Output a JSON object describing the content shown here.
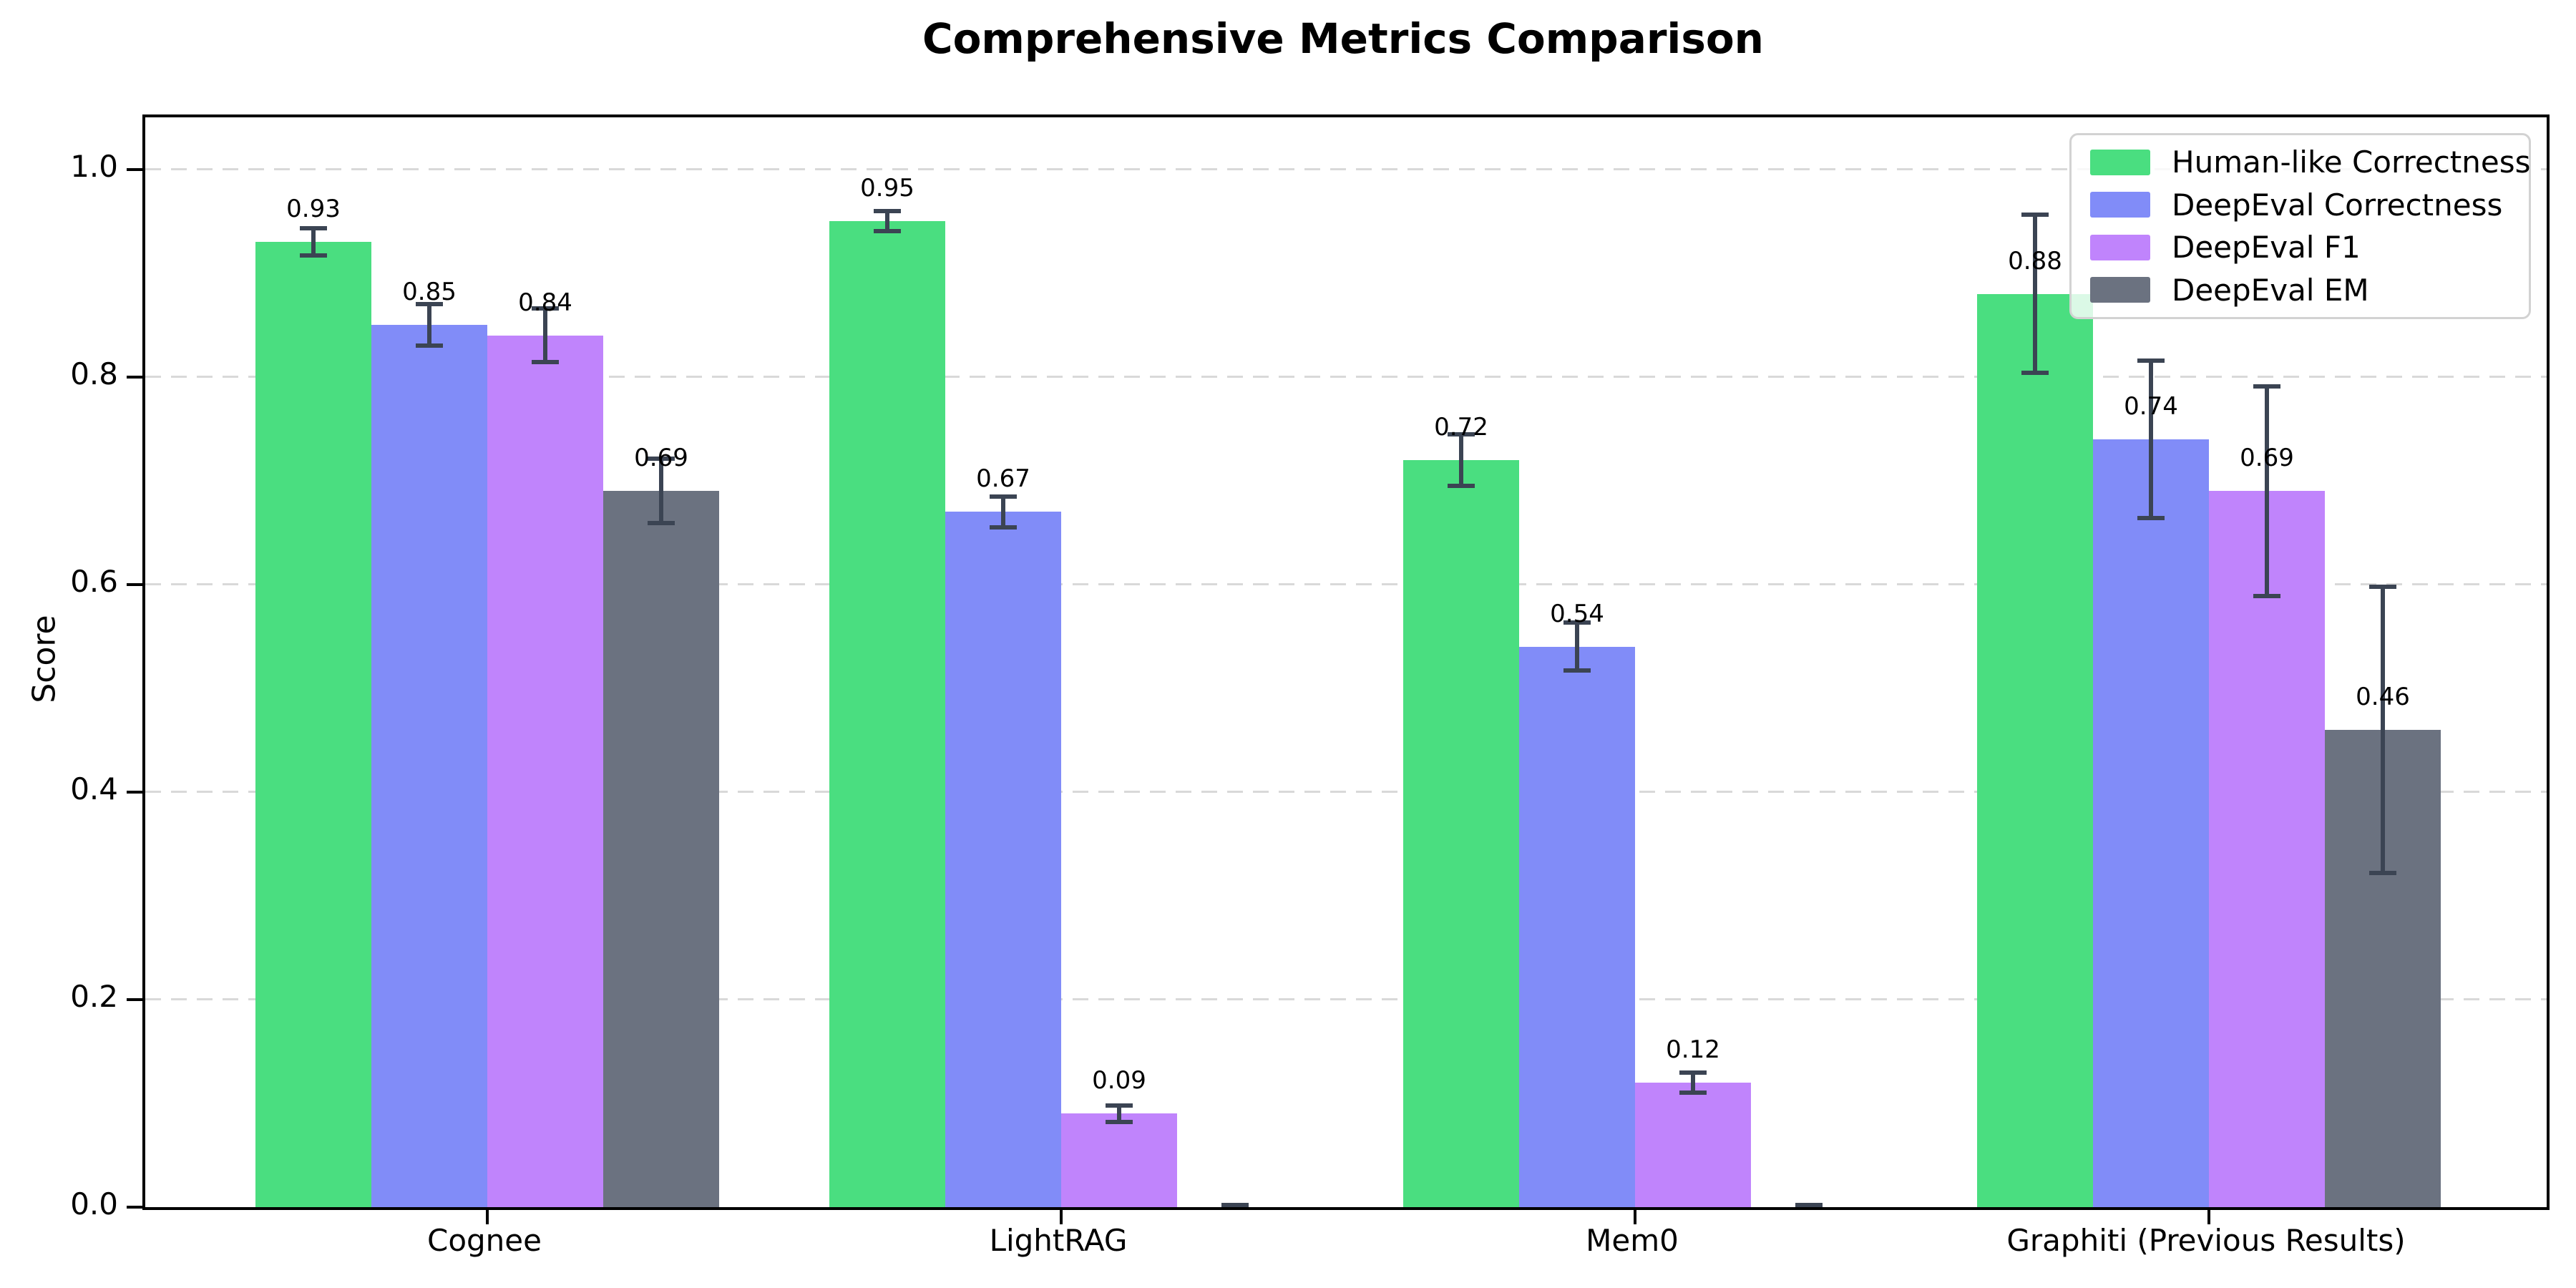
{
  "chart_data": {
    "type": "bar",
    "title": "Comprehensive Metrics Comparison",
    "xlabel": "",
    "ylabel": "Score",
    "categories": [
      "Cognee",
      "LightRAG",
      "Mem0",
      "Graphiti (Previous Results)"
    ],
    "series": [
      {
        "name": "Human-like Correctness",
        "color": "#4ade80",
        "values": [
          0.93,
          0.95,
          0.72,
          0.88
        ],
        "errors": [
          0.015,
          0.012,
          0.027,
          0.078
        ],
        "labels": [
          "0.93",
          "0.95",
          "0.72",
          "0.88"
        ]
      },
      {
        "name": "DeepEval Correctness",
        "color": "#818cf8",
        "values": [
          0.85,
          0.67,
          0.54,
          0.74
        ],
        "errors": [
          0.022,
          0.017,
          0.025,
          0.078
        ],
        "labels": [
          "0.85",
          "0.67",
          "0.54",
          "0.74"
        ]
      },
      {
        "name": "DeepEval F1",
        "color": "#c084fc",
        "values": [
          0.84,
          0.09,
          0.12,
          0.69
        ],
        "errors": [
          0.028,
          0.01,
          0.012,
          0.103
        ],
        "labels": [
          "0.84",
          "0.09",
          "0.12",
          "0.69"
        ]
      },
      {
        "name": "DeepEval EM",
        "color": "#6b7280",
        "values": [
          0.69,
          0.0,
          0.0,
          0.46
        ],
        "errors": [
          0.033,
          0.004,
          0.004,
          0.14
        ],
        "labels": [
          "0.69",
          "",
          "",
          "0.46"
        ]
      }
    ],
    "yticks": [
      0.0,
      0.2,
      0.4,
      0.6,
      0.8,
      1.0
    ],
    "ytick_labels": [
      "0.0",
      "0.2",
      "0.4",
      "0.6",
      "0.8",
      "1.0"
    ],
    "ylim": [
      0,
      1.05
    ],
    "grid": "horizontal-dashed",
    "legend_position": "upper-right",
    "colors": {
      "error_bar": "#3b4453",
      "grid_line": "#d9d9d9",
      "axis": "#000000",
      "legend_border": "#d2d2d2",
      "background": "#ffffff"
    }
  }
}
